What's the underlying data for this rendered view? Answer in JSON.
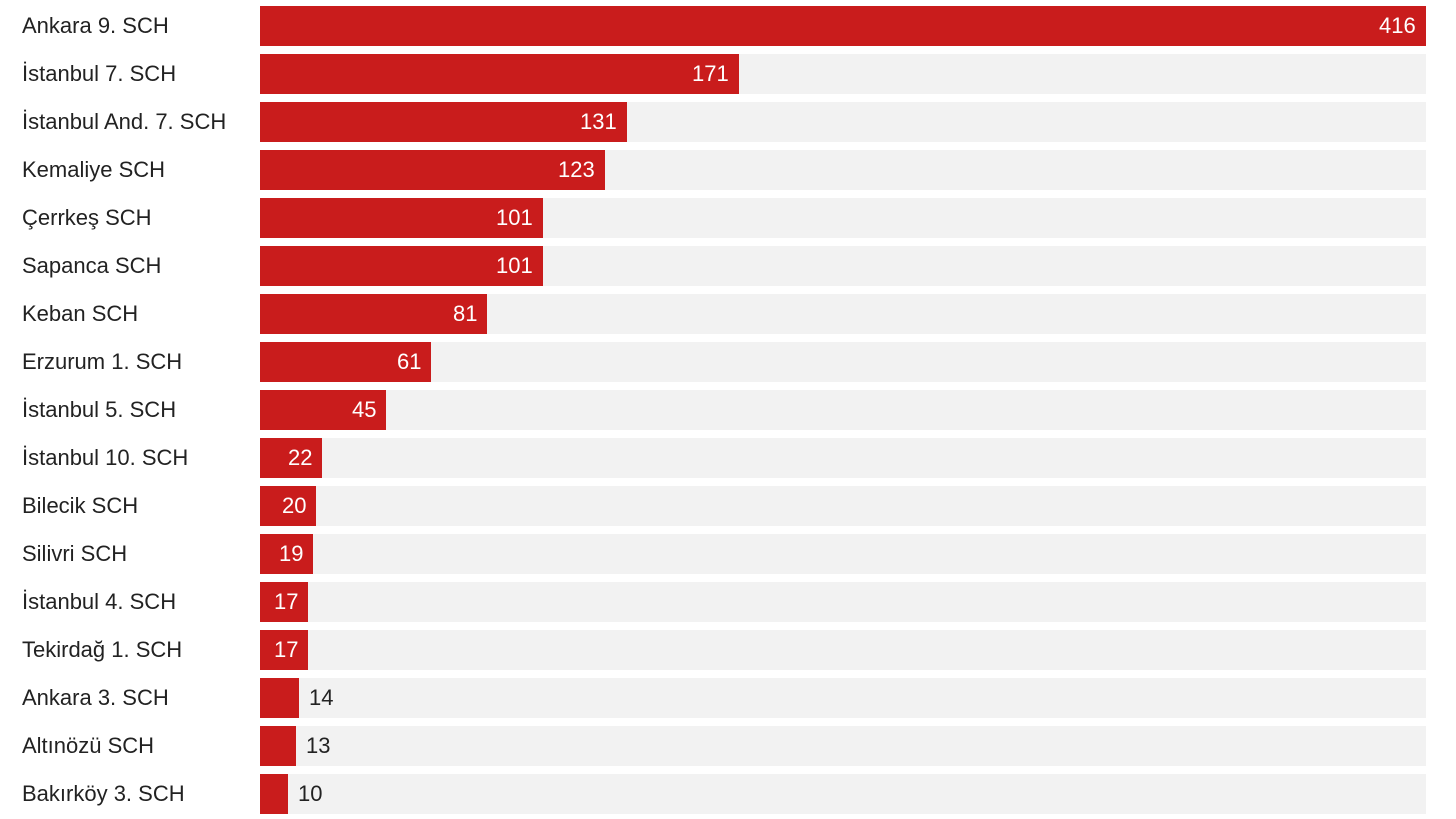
{
  "chart_data": {
    "type": "bar",
    "orientation": "horizontal",
    "categories": [
      "Ankara 9. SCH",
      "İstanbul 7. SCH",
      "İstanbul And. 7. SCH",
      "Kemaliye SCH",
      "Çerrkeş SCH",
      "Sapanca SCH",
      "Keban SCH",
      "Erzurum 1. SCH",
      "İstanbul 5. SCH",
      "İstanbul 10. SCH",
      "Bilecik SCH",
      "Silivri SCH",
      "İstanbul 4. SCH",
      "Tekirdağ 1. SCH",
      "Ankara 3. SCH",
      "Altınözü SCH",
      "Bakırköy 3. SCH"
    ],
    "values": [
      416,
      171,
      131,
      123,
      101,
      101,
      81,
      61,
      45,
      22,
      20,
      19,
      17,
      17,
      14,
      13,
      10
    ],
    "xlim": [
      0,
      416
    ],
    "grid": false,
    "legend": "none",
    "colors": {
      "bar": "#c91c1c",
      "track": "#f2f2f2",
      "label_inside": "#ffffff",
      "label_outside": "#222222",
      "category_text": "#222222"
    }
  }
}
